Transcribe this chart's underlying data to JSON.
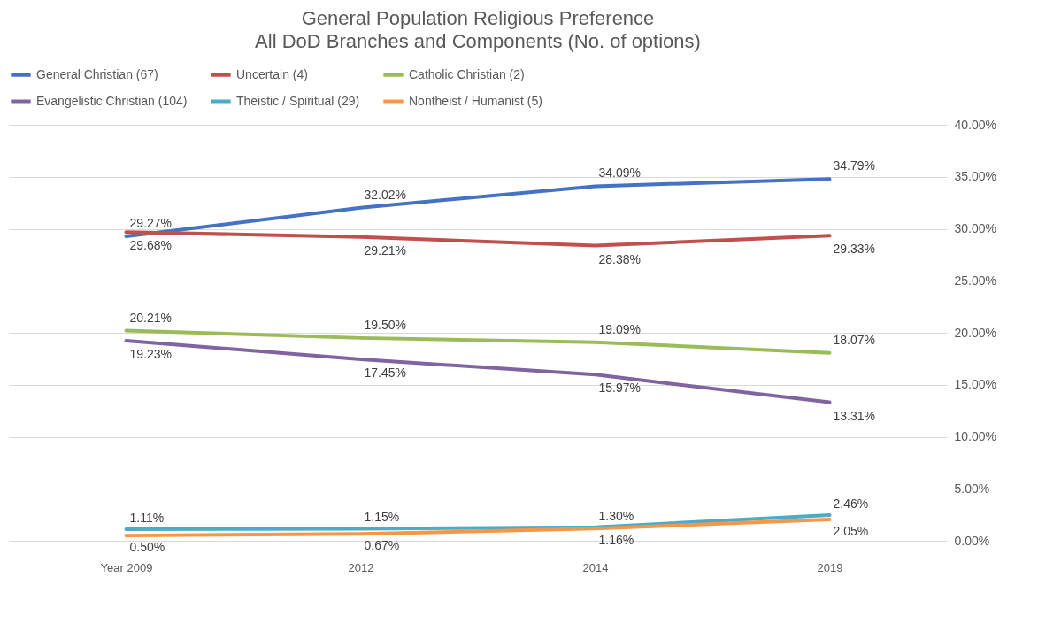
{
  "chart_data": {
    "type": "line",
    "title": "General Population Religious Preference",
    "subtitle": "All DoD Branches and Components (No. of options)",
    "categories": [
      "Year 2009",
      "2012",
      "2014",
      "2019"
    ],
    "series": [
      {
        "name": "General Christian (67)",
        "color": "#4472c4",
        "values": [
          29.27,
          32.02,
          34.09,
          34.79
        ],
        "value_labels": [
          "29.27%",
          "32.02%",
          "34.09%",
          "34.79%"
        ]
      },
      {
        "name": "Uncertain (4)",
        "color": "#c0504d",
        "values": [
          29.68,
          29.21,
          28.38,
          29.33
        ],
        "value_labels": [
          "29.68%",
          "29.21%",
          "28.38%",
          "29.33%"
        ]
      },
      {
        "name": "Catholic Christian (2)",
        "color": "#9bbb59",
        "values": [
          20.21,
          19.5,
          19.09,
          18.07
        ],
        "value_labels": [
          "20.21%",
          "19.50%",
          "19.09%",
          "18.07%"
        ]
      },
      {
        "name": "Evangelistic Christian (104)",
        "color": "#8064a2",
        "values": [
          19.23,
          17.45,
          15.97,
          13.31
        ],
        "value_labels": [
          "19.23%",
          "17.45%",
          "15.97%",
          "13.31%"
        ]
      },
      {
        "name": "Theistic / Spiritual (29)",
        "color": "#4bacc6",
        "values": [
          1.11,
          1.15,
          1.3,
          2.46
        ],
        "value_labels": [
          "1.11%",
          "1.15%",
          "1.30%",
          "2.46%"
        ]
      },
      {
        "name": "Nontheist / Humanist (5)",
        "color": "#f79646",
        "values": [
          0.5,
          0.67,
          1.16,
          2.05
        ],
        "value_labels": [
          "0.50%",
          "0.67%",
          "1.16%",
          "2.05%"
        ]
      }
    ],
    "ylim": [
      0,
      40
    ],
    "yticks": [
      {
        "value": 0,
        "label": "0.00%"
      },
      {
        "value": 5,
        "label": "5.00%"
      },
      {
        "value": 10,
        "label": "10.00%"
      },
      {
        "value": 15,
        "label": "15.00%"
      },
      {
        "value": 20,
        "label": "20.00%"
      },
      {
        "value": 25,
        "label": "25.00%"
      },
      {
        "value": 30,
        "label": "30.00%"
      },
      {
        "value": 35,
        "label": "35.00%"
      },
      {
        "value": 40,
        "label": "40.00%"
      }
    ],
    "grid": "y",
    "legend": "top",
    "marker": "none",
    "line_style": "solid"
  }
}
